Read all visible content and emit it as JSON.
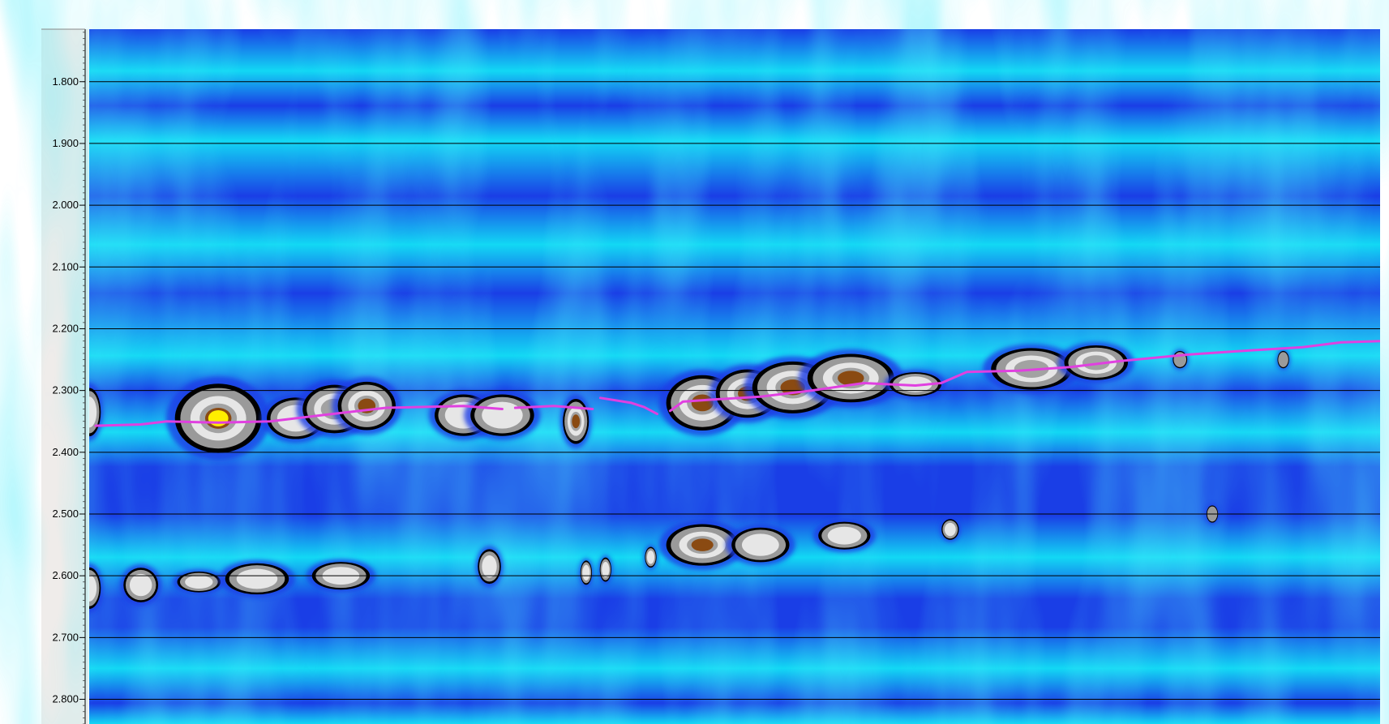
{
  "colors": {
    "background_deep": "#1a3ee6",
    "background_light": "#12d8f4",
    "anomaly_dark": "#000000",
    "anomaly_mid": "#9a9a9a",
    "anomaly_light": "#e6e6e6",
    "anomaly_brown": "#8a4a12",
    "anomaly_peak": "#ffee00",
    "horizon_line": "#e040e0",
    "gridline": "#000000",
    "axis_panel": "#efecea"
  },
  "chart_data": {
    "type": "heatmap",
    "title": "",
    "xlabel": "",
    "ylabel": "",
    "y_direction": "down",
    "ylim": [
      1.715,
      2.84
    ],
    "xlim": [
      0,
      1
    ],
    "grid": true,
    "legend": "none",
    "y_ticks": [
      "1.800",
      "1.900",
      "2.000",
      "2.100",
      "2.200",
      "2.300",
      "2.400",
      "2.500",
      "2.600",
      "2.700",
      "2.800"
    ],
    "horizon_line": {
      "name": "",
      "segments": [
        [
          [
            0.005,
            2.357
          ],
          [
            0.04,
            2.355
          ],
          [
            0.06,
            2.35
          ],
          [
            0.1,
            2.352
          ],
          [
            0.14,
            2.35
          ],
          [
            0.18,
            2.34
          ],
          [
            0.23,
            2.328
          ],
          [
            0.29,
            2.325
          ],
          [
            0.32,
            2.33
          ]
        ],
        [
          [
            0.33,
            2.328
          ],
          [
            0.36,
            2.325
          ],
          [
            0.39,
            2.33
          ]
        ],
        [
          [
            0.396,
            2.312
          ],
          [
            0.42,
            2.32
          ],
          [
            0.43,
            2.327
          ],
          [
            0.44,
            2.338
          ]
        ],
        [
          [
            0.45,
            2.333
          ],
          [
            0.46,
            2.318
          ],
          [
            0.48,
            2.315
          ],
          [
            0.52,
            2.31
          ],
          [
            0.56,
            2.3
          ],
          [
            0.6,
            2.288
          ],
          [
            0.64,
            2.292
          ],
          [
            0.66,
            2.288
          ],
          [
            0.68,
            2.27
          ],
          [
            0.72,
            2.268
          ],
          [
            0.76,
            2.262
          ],
          [
            0.8,
            2.252
          ],
          [
            0.85,
            2.242
          ],
          [
            0.9,
            2.235
          ],
          [
            0.94,
            2.23
          ],
          [
            0.97,
            2.222
          ],
          [
            1.0,
            2.22
          ]
        ]
      ]
    },
    "anomalies": [
      {
        "x": 0.0,
        "y": 2.335,
        "rx": 0.008,
        "ry": 0.07,
        "level": 0.55
      },
      {
        "x": 0.1,
        "y": 2.345,
        "rx": 0.03,
        "ry": 0.1,
        "level": 1.0
      },
      {
        "x": 0.16,
        "y": 2.345,
        "rx": 0.02,
        "ry": 0.06,
        "level": 0.6
      },
      {
        "x": 0.19,
        "y": 2.33,
        "rx": 0.022,
        "ry": 0.07,
        "level": 0.65
      },
      {
        "x": 0.215,
        "y": 2.325,
        "rx": 0.02,
        "ry": 0.07,
        "level": 0.72
      },
      {
        "x": 0.29,
        "y": 2.34,
        "rx": 0.02,
        "ry": 0.06,
        "level": 0.6
      },
      {
        "x": 0.32,
        "y": 2.34,
        "rx": 0.022,
        "ry": 0.06,
        "level": 0.6
      },
      {
        "x": 0.377,
        "y": 2.35,
        "rx": 0.009,
        "ry": 0.065,
        "level": 0.75
      },
      {
        "x": 0.475,
        "y": 2.32,
        "rx": 0.025,
        "ry": 0.08,
        "level": 0.85
      },
      {
        "x": 0.51,
        "y": 2.305,
        "rx": 0.022,
        "ry": 0.07,
        "level": 0.85
      },
      {
        "x": 0.545,
        "y": 2.295,
        "rx": 0.028,
        "ry": 0.075,
        "level": 0.75
      },
      {
        "x": 0.59,
        "y": 2.28,
        "rx": 0.03,
        "ry": 0.07,
        "level": 0.72
      },
      {
        "x": 0.64,
        "y": 2.29,
        "rx": 0.018,
        "ry": 0.035,
        "level": 0.45
      },
      {
        "x": 0.73,
        "y": 2.265,
        "rx": 0.028,
        "ry": 0.06,
        "level": 0.65
      },
      {
        "x": 0.78,
        "y": 2.255,
        "rx": 0.022,
        "ry": 0.05,
        "level": 0.62
      },
      {
        "x": 0.845,
        "y": 2.25,
        "rx": 0.005,
        "ry": 0.025,
        "level": 0.35
      },
      {
        "x": 0.925,
        "y": 2.25,
        "rx": 0.004,
        "ry": 0.025,
        "level": 0.35
      },
      {
        "x": 0.0,
        "y": 2.62,
        "rx": 0.008,
        "ry": 0.06,
        "level": 0.55
      },
      {
        "x": 0.04,
        "y": 2.615,
        "rx": 0.012,
        "ry": 0.05,
        "level": 0.55
      },
      {
        "x": 0.085,
        "y": 2.61,
        "rx": 0.015,
        "ry": 0.03,
        "level": 0.45
      },
      {
        "x": 0.13,
        "y": 2.605,
        "rx": 0.022,
        "ry": 0.045,
        "level": 0.6
      },
      {
        "x": 0.195,
        "y": 2.6,
        "rx": 0.02,
        "ry": 0.04,
        "level": 0.55
      },
      {
        "x": 0.31,
        "y": 2.585,
        "rx": 0.008,
        "ry": 0.05,
        "level": 0.55
      },
      {
        "x": 0.385,
        "y": 2.595,
        "rx": 0.004,
        "ry": 0.035,
        "level": 0.45
      },
      {
        "x": 0.4,
        "y": 2.59,
        "rx": 0.004,
        "ry": 0.035,
        "level": 0.45
      },
      {
        "x": 0.435,
        "y": 2.57,
        "rx": 0.004,
        "ry": 0.03,
        "level": 0.4
      },
      {
        "x": 0.475,
        "y": 2.55,
        "rx": 0.025,
        "ry": 0.06,
        "level": 0.85
      },
      {
        "x": 0.52,
        "y": 2.55,
        "rx": 0.02,
        "ry": 0.05,
        "level": 0.6
      },
      {
        "x": 0.585,
        "y": 2.535,
        "rx": 0.018,
        "ry": 0.04,
        "level": 0.55
      },
      {
        "x": 0.667,
        "y": 2.525,
        "rx": 0.006,
        "ry": 0.03,
        "level": 0.4
      },
      {
        "x": 0.87,
        "y": 2.5,
        "rx": 0.004,
        "ry": 0.025,
        "level": 0.3
      }
    ]
  }
}
